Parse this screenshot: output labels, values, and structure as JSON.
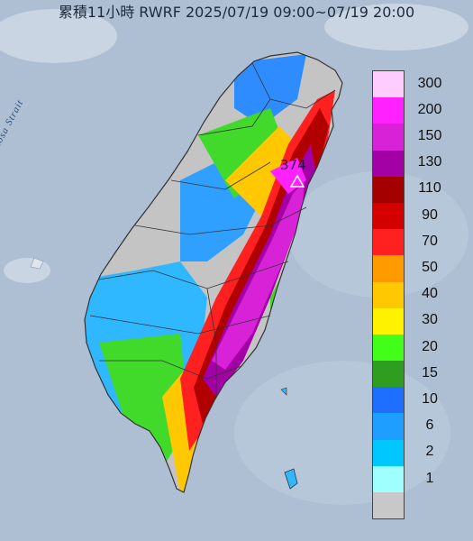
{
  "title": "累積11小時 RWRF 2025/07/19 09:00~07/19 20:00",
  "strait_label": "Formosa Strait",
  "max_label": "374",
  "legend": [
    {
      "label": "300",
      "color": "#ffccff"
    },
    {
      "label": "200",
      "color": "#ff22ff"
    },
    {
      "label": "150",
      "color": "#d822d8"
    },
    {
      "label": "130",
      "color": "#a300a6"
    },
    {
      "label": "110",
      "color": "#a50000"
    },
    {
      "label": "90",
      "color": "#d40000"
    },
    {
      "label": "70",
      "color": "#ff2020"
    },
    {
      "label": "50",
      "color": "#ff9a00"
    },
    {
      "label": "40",
      "color": "#ffc800"
    },
    {
      "label": "30",
      "color": "#fff200"
    },
    {
      "label": "20",
      "color": "#42ff1a"
    },
    {
      "label": "15",
      "color": "#2f9e20"
    },
    {
      "label": "10",
      "color": "#1f6fff"
    },
    {
      "label": "6",
      "color": "#1e9eff"
    },
    {
      "label": "2",
      "color": "#00c8ff"
    },
    {
      "label": "1",
      "color": "#9fffff"
    },
    {
      "label": "",
      "color": "#c8c8c8"
    }
  ],
  "colors": {
    "sea": "#aebfd4",
    "no_rain": "#c4c4c4"
  }
}
